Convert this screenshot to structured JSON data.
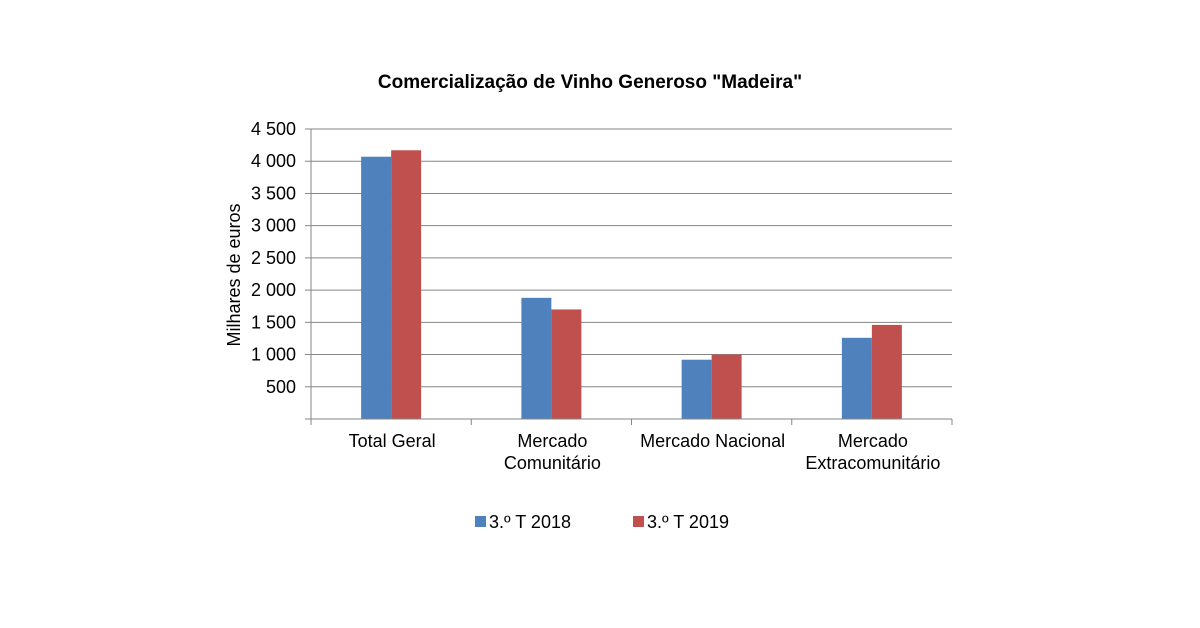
{
  "chart_data": {
    "type": "bar",
    "title": "Comercialização de Vinho Generoso \"Madeira\"",
    "ylabel": "Milhares de euros",
    "xlabel": "",
    "categories": [
      [
        "Total Geral"
      ],
      [
        "Mercado",
        "Comunitário"
      ],
      [
        "Mercado Nacional"
      ],
      [
        "Mercado",
        "Extracomunitário"
      ]
    ],
    "series": [
      {
        "name": "3.º T 2018",
        "color": "#4f81bd",
        "values": [
          4070,
          1880,
          920,
          1260
        ]
      },
      {
        "name": "3.º T 2019",
        "color": "#c0504d",
        "values": [
          4170,
          1700,
          1000,
          1460
        ]
      }
    ],
    "ylim": [
      0,
      4500
    ],
    "yticks": [
      500,
      1000,
      1500,
      2000,
      2500,
      3000,
      3500,
      4000,
      4500
    ],
    "ytick_labels": [
      "500",
      "1 000",
      "1 500",
      "2 000",
      "2 500",
      "3 000",
      "3 500",
      "4 000",
      "4 500"
    ],
    "grid": true,
    "legend_position": "bottom"
  }
}
